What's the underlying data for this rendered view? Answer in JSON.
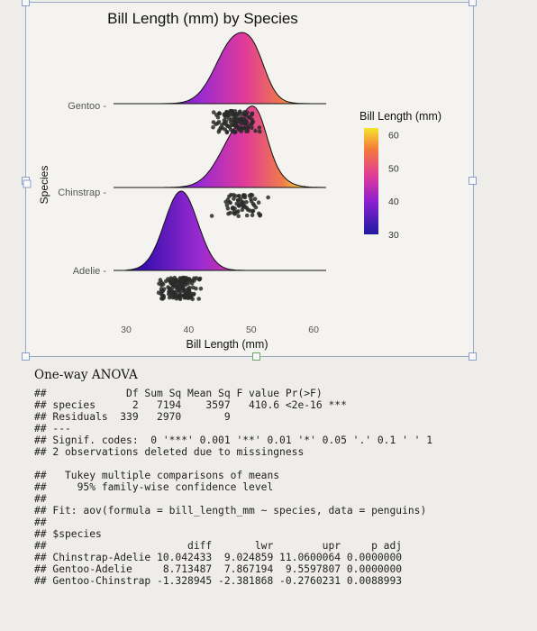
{
  "chart_data": {
    "type": "ridgeline",
    "title": "Bill Length (mm) by Species",
    "xlabel": "Bill Length (mm)",
    "ylabel": "Species",
    "xlim": [
      30,
      62
    ],
    "x_ticks": [
      "30",
      "40",
      "50",
      "60"
    ],
    "categories": [
      "Adelie",
      "Chinstrap",
      "Gentoo"
    ],
    "series": [
      {
        "name": "Adelie",
        "mean": 38.8,
        "sd": 2.66
      },
      {
        "name": "Chinstrap",
        "mean": 48.8,
        "sd": 3.34
      },
      {
        "name": "Gentoo",
        "mean": 47.5,
        "sd": 3.08
      }
    ],
    "legend": {
      "title": "Bill Length (mm)",
      "ticks": [
        "60",
        "50",
        "40",
        "30"
      ],
      "range": [
        30,
        62
      ],
      "position": "right"
    },
    "colors": {
      "low": "#3b0fb0",
      "mid_low": "#9c2bd0",
      "mid": "#e03a9a",
      "mid_high": "#f07a4a",
      "high": "#f2e234",
      "points": "#2a2a2a"
    }
  },
  "output": {
    "heading": "One-way ANOVA",
    "lines": [
      "##             Df Sum Sq Mean Sq F value Pr(>F)",
      "## species      2   7194    3597   410.6 <2e-16 ***",
      "## Residuals  339   2970       9",
      "## ---",
      "## Signif. codes:  0 '***' 0.001 '**' 0.01 '*' 0.05 '.' 0.1 ' ' 1",
      "## 2 observations deleted due to missingness",
      "",
      "##   Tukey multiple comparisons of means",
      "##     95% family-wise confidence level",
      "##",
      "## Fit: aov(formula = bill_length_mm ~ species, data = penguins)",
      "##",
      "## $species",
      "##                       diff       lwr        upr     p adj",
      "## Chinstrap-Adelie 10.042433  9.024859 11.0600064 0.0000000",
      "## Gentoo-Adelie     8.713487  7.867194  9.5597807 0.0000000",
      "## Gentoo-Chinstrap -1.328945 -2.381868 -0.2760231 0.0088993"
    ]
  }
}
